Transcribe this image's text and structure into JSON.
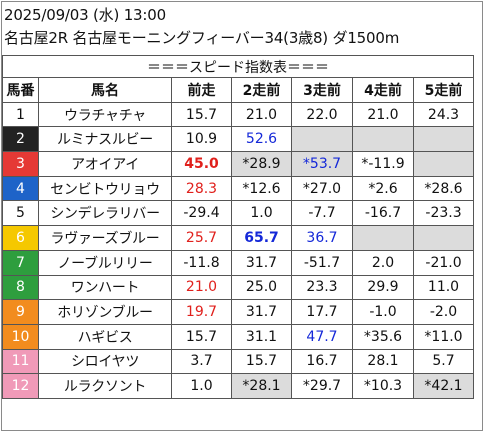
{
  "header": {
    "date_line": "2025/09/03 (水) 13:00",
    "race_line": "名古屋2R 名古屋モーニングフィーバー34(3歳8) ダ1500m"
  },
  "table": {
    "title": "＝＝＝スピード指数表＝＝＝",
    "columns": [
      "馬番",
      "馬名",
      "前走",
      "2走前",
      "3走前",
      "4走前",
      "5走前"
    ],
    "rows": [
      {
        "num": "1",
        "name": "ウラチャチャ",
        "num_bg": "#ffffff",
        "num_fg": "#111111",
        "vals": [
          {
            "t": "15.7",
            "c": "",
            "s": false,
            "b": false
          },
          {
            "t": "21.0",
            "c": "",
            "s": false,
            "b": false
          },
          {
            "t": "22.0",
            "c": "",
            "s": false,
            "b": false
          },
          {
            "t": "21.0",
            "c": "",
            "s": false,
            "b": false
          },
          {
            "t": "24.3",
            "c": "",
            "s": false,
            "b": false
          }
        ]
      },
      {
        "num": "2",
        "name": "ルミナスルビー",
        "num_bg": "#222222",
        "num_fg": "#ffffff",
        "vals": [
          {
            "t": "10.9",
            "c": "",
            "s": false,
            "b": false
          },
          {
            "t": "52.6",
            "c": "blue",
            "s": false,
            "b": false
          },
          {
            "t": "",
            "c": "",
            "s": true,
            "b": false
          },
          {
            "t": "",
            "c": "",
            "s": true,
            "b": false
          },
          {
            "t": "",
            "c": "",
            "s": true,
            "b": false
          }
        ]
      },
      {
        "num": "3",
        "name": "アオイアイ",
        "num_bg": "#e53935",
        "num_fg": "#ffffff",
        "vals": [
          {
            "t": "45.0",
            "c": "red",
            "s": false,
            "b": true
          },
          {
            "t": "*28.9",
            "c": "",
            "s": true,
            "b": false
          },
          {
            "t": "*53.7",
            "c": "blue",
            "s": true,
            "b": false
          },
          {
            "t": "*-11.9",
            "c": "",
            "s": false,
            "b": false
          },
          {
            "t": "",
            "c": "",
            "s": true,
            "b": false
          }
        ]
      },
      {
        "num": "4",
        "name": "センビトウリョウ",
        "num_bg": "#1e63c8",
        "num_fg": "#ffffff",
        "vals": [
          {
            "t": "28.3",
            "c": "red",
            "s": false,
            "b": false
          },
          {
            "t": "*12.6",
            "c": "",
            "s": false,
            "b": false
          },
          {
            "t": "*27.0",
            "c": "",
            "s": false,
            "b": false
          },
          {
            "t": "*2.6",
            "c": "",
            "s": false,
            "b": false
          },
          {
            "t": "*28.6",
            "c": "",
            "s": false,
            "b": false
          }
        ]
      },
      {
        "num": "5",
        "name": "シンデレラリバー",
        "num_bg": "#ffffff",
        "num_fg": "#111111",
        "vals": [
          {
            "t": "-29.4",
            "c": "",
            "s": false,
            "b": false
          },
          {
            "t": "1.0",
            "c": "",
            "s": false,
            "b": false
          },
          {
            "t": "-7.7",
            "c": "",
            "s": false,
            "b": false
          },
          {
            "t": "-16.7",
            "c": "",
            "s": false,
            "b": false
          },
          {
            "t": "-23.3",
            "c": "",
            "s": false,
            "b": false
          }
        ]
      },
      {
        "num": "6",
        "name": "ラヴァーズブルー",
        "num_bg": "#f5c800",
        "num_fg": "#ffffff",
        "vals": [
          {
            "t": "25.7",
            "c": "red",
            "s": false,
            "b": false
          },
          {
            "t": "65.7",
            "c": "blue",
            "s": false,
            "b": true
          },
          {
            "t": "36.7",
            "c": "blue",
            "s": false,
            "b": false
          },
          {
            "t": "",
            "c": "",
            "s": true,
            "b": false
          },
          {
            "t": "",
            "c": "",
            "s": true,
            "b": false
          }
        ]
      },
      {
        "num": "7",
        "name": "ノーブルリリー",
        "num_bg": "#2e9e3e",
        "num_fg": "#ffffff",
        "vals": [
          {
            "t": "-11.8",
            "c": "",
            "s": false,
            "b": false
          },
          {
            "t": "31.7",
            "c": "",
            "s": false,
            "b": false
          },
          {
            "t": "-51.7",
            "c": "",
            "s": false,
            "b": false
          },
          {
            "t": "2.0",
            "c": "",
            "s": false,
            "b": false
          },
          {
            "t": "-21.0",
            "c": "",
            "s": false,
            "b": false
          }
        ]
      },
      {
        "num": "8",
        "name": "ワンハート",
        "num_bg": "#2e9e3e",
        "num_fg": "#ffffff",
        "vals": [
          {
            "t": "21.0",
            "c": "red",
            "s": false,
            "b": false
          },
          {
            "t": "25.0",
            "c": "",
            "s": false,
            "b": false
          },
          {
            "t": "23.3",
            "c": "",
            "s": false,
            "b": false
          },
          {
            "t": "29.9",
            "c": "",
            "s": false,
            "b": false
          },
          {
            "t": "11.0",
            "c": "",
            "s": false,
            "b": false
          }
        ]
      },
      {
        "num": "9",
        "name": "ホリゾンブルー",
        "num_bg": "#f28c1e",
        "num_fg": "#ffffff",
        "vals": [
          {
            "t": "19.7",
            "c": "red",
            "s": false,
            "b": false
          },
          {
            "t": "31.7",
            "c": "",
            "s": false,
            "b": false
          },
          {
            "t": "17.7",
            "c": "",
            "s": false,
            "b": false
          },
          {
            "t": "-1.0",
            "c": "",
            "s": false,
            "b": false
          },
          {
            "t": "-2.0",
            "c": "",
            "s": false,
            "b": false
          }
        ]
      },
      {
        "num": "10",
        "name": "ハギビス",
        "num_bg": "#f28c1e",
        "num_fg": "#ffffff",
        "vals": [
          {
            "t": "15.7",
            "c": "",
            "s": false,
            "b": false
          },
          {
            "t": "31.1",
            "c": "",
            "s": false,
            "b": false
          },
          {
            "t": "47.7",
            "c": "blue",
            "s": false,
            "b": false
          },
          {
            "t": "*35.6",
            "c": "",
            "s": false,
            "b": false
          },
          {
            "t": "*11.0",
            "c": "",
            "s": false,
            "b": false
          }
        ]
      },
      {
        "num": "11",
        "name": "シロイヤツ",
        "num_bg": "#f09ab8",
        "num_fg": "#ffffff",
        "vals": [
          {
            "t": "3.7",
            "c": "",
            "s": false,
            "b": false
          },
          {
            "t": "15.7",
            "c": "",
            "s": false,
            "b": false
          },
          {
            "t": "16.7",
            "c": "",
            "s": false,
            "b": false
          },
          {
            "t": "28.1",
            "c": "",
            "s": false,
            "b": false
          },
          {
            "t": "5.7",
            "c": "",
            "s": false,
            "b": false
          }
        ]
      },
      {
        "num": "12",
        "name": "ルラクソント",
        "num_bg": "#f09ab8",
        "num_fg": "#ffffff",
        "vals": [
          {
            "t": "1.0",
            "c": "",
            "s": false,
            "b": false
          },
          {
            "t": "*28.1",
            "c": "",
            "s": true,
            "b": false
          },
          {
            "t": "*29.7",
            "c": "",
            "s": false,
            "b": false
          },
          {
            "t": "*10.3",
            "c": "",
            "s": false,
            "b": false
          },
          {
            "t": "*42.1",
            "c": "",
            "s": true,
            "b": false
          }
        ]
      }
    ]
  }
}
